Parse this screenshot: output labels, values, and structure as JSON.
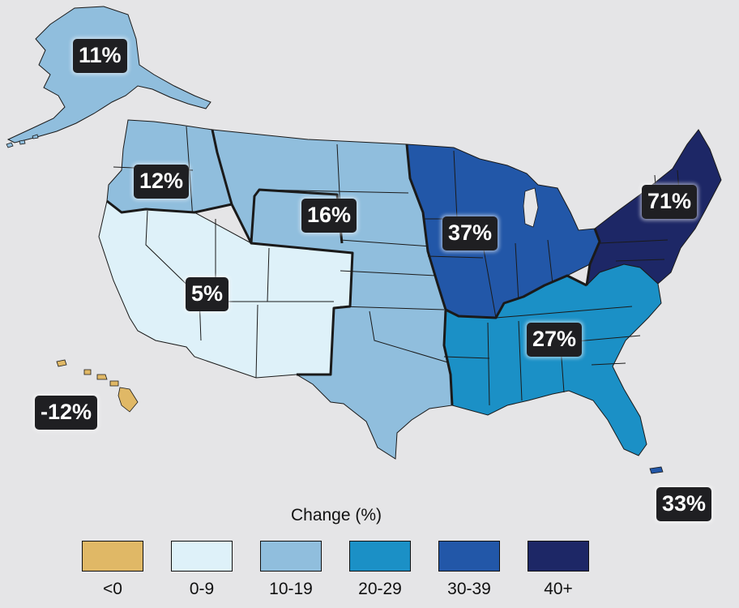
{
  "colors": {
    "negative": "#e0b866",
    "c0_9": "#def1f9",
    "c10_19": "#90bedd",
    "c20_29": "#1b90c6",
    "c30_39": "#2257a8",
    "c40_plus": "#1d2766",
    "border": "#1a1a1a",
    "background": "#e5e5e7"
  },
  "regions": [
    {
      "id": "alaska",
      "label": "11%"
    },
    {
      "id": "northwest",
      "label": "12%"
    },
    {
      "id": "great-plains",
      "label": "16%"
    },
    {
      "id": "southwest",
      "label": "5%"
    },
    {
      "id": "midwest",
      "label": "37%"
    },
    {
      "id": "northeast",
      "label": "71%"
    },
    {
      "id": "southeast",
      "label": "27%"
    },
    {
      "id": "hawaii",
      "label": "-12%"
    },
    {
      "id": "puerto-rico",
      "label": "33%"
    }
  ],
  "legend": {
    "title": "Change (%)",
    "items": [
      {
        "label": "<0",
        "color": "#e0b866"
      },
      {
        "label": "0-9",
        "color": "#def1f9"
      },
      {
        "label": "10-19",
        "color": "#90bedd"
      },
      {
        "label": "20-29",
        "color": "#1b90c6"
      },
      {
        "label": "30-39",
        "color": "#2257a8"
      },
      {
        "label": "40+",
        "color": "#1d2766"
      }
    ]
  }
}
